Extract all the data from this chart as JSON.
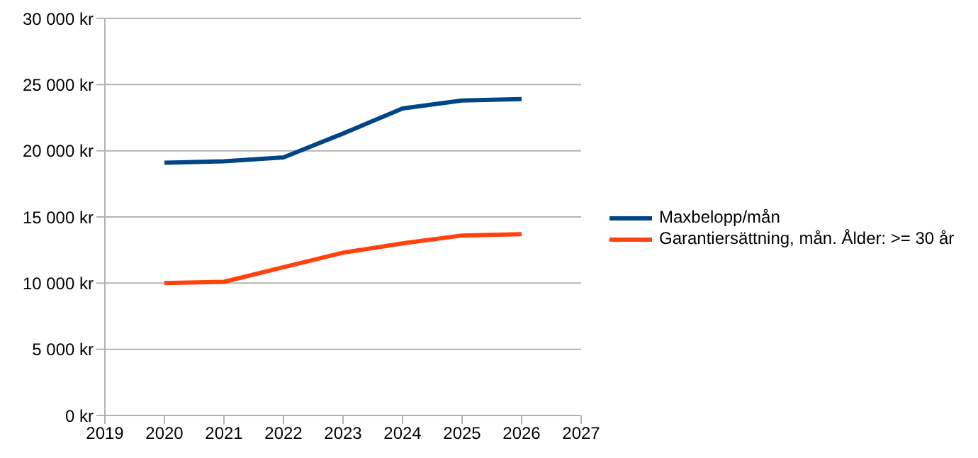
{
  "chart_data": {
    "type": "line",
    "x": [
      2020,
      2021,
      2022,
      2023,
      2024,
      2025,
      2026
    ],
    "series": [
      {
        "name": "Maxbelopp/mån",
        "color": "#004586",
        "values": [
          19100,
          19200,
          19500,
          21300,
          23200,
          23800,
          23900
        ]
      },
      {
        "name": "Garantiersättning, mån. Ålder: >= 30 år",
        "color": "#ff420e",
        "values": [
          10000,
          10100,
          11200,
          12300,
          13000,
          13600,
          13700
        ]
      }
    ],
    "xlim": [
      2019,
      2027
    ],
    "xticks": [
      2019,
      2020,
      2021,
      2022,
      2023,
      2024,
      2025,
      2026,
      2027
    ],
    "ylim": [
      0,
      30000
    ],
    "yticks": [
      {
        "value": 0,
        "label": "0 kr"
      },
      {
        "value": 5000,
        "label": "5 000 kr"
      },
      {
        "value": 10000,
        "label": "10 000 kr"
      },
      {
        "value": 15000,
        "label": "15 000 kr"
      },
      {
        "value": 20000,
        "label": "20 000 kr"
      },
      {
        "value": 25000,
        "label": "25 000 kr"
      },
      {
        "value": 30000,
        "label": "30 000 kr"
      }
    ],
    "grid": "y",
    "legend": "right",
    "marker": "none",
    "line_style": "solid"
  }
}
